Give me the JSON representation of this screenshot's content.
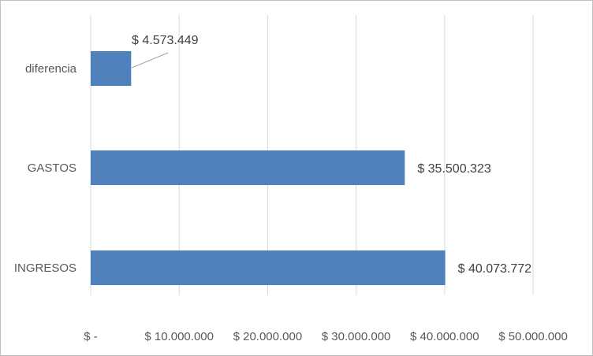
{
  "chart_data": {
    "type": "bar",
    "orientation": "horizontal",
    "categories": [
      "INGRESOS",
      "GASTOS",
      "diferencia"
    ],
    "values": [
      40073772,
      35500323,
      4573449
    ],
    "data_labels": [
      "$ 40.073.772",
      "$ 35.500.323",
      "$ 4.573.449"
    ],
    "xlim": [
      0,
      50000000
    ],
    "x_ticks": [
      0,
      10000000,
      20000000,
      30000000,
      40000000,
      50000000
    ],
    "x_tick_labels": [
      "$ -",
      "$ 10.000.000",
      "$ 20.000.000",
      "$ 30.000.000",
      "$ 40.000.000",
      "$ 50.000.000"
    ],
    "grid": true,
    "legend": "none",
    "bar_color": "#4f81bd",
    "grid_color": "#d9d9d9"
  }
}
